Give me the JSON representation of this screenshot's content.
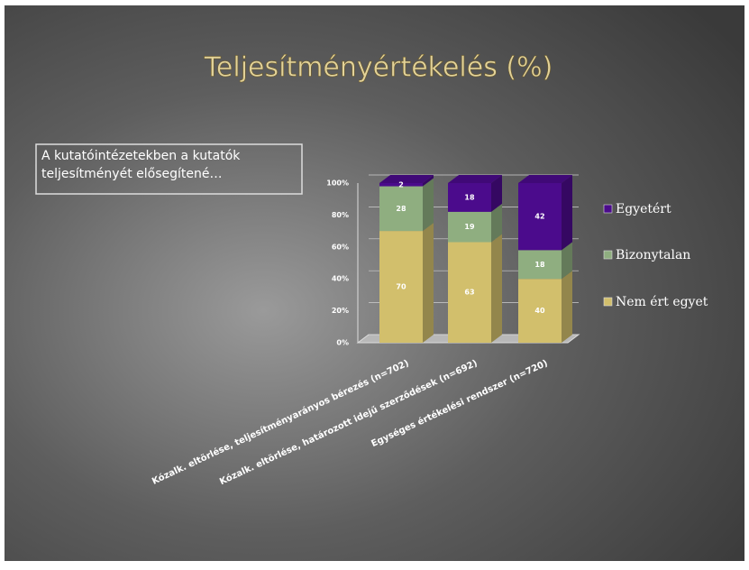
{
  "chart_data": {
    "type": "stacked_bar_3d",
    "title": "Teljesítményértékelés (%)",
    "annotation": "A kutatóintézetekben a kutatók teljesítményét elősegítené…",
    "categories": [
      "Kózalk. eltörlése, teljesítményarányos bérezés (n=702)",
      "Kózalk. eltörlése, határozott idejű szerződések (n=692)",
      "Egységes értékelési rendszer (n=720)"
    ],
    "series": [
      {
        "name": "Nem ért egyet",
        "color": "#d2bf6c",
        "values": [
          70,
          63,
          40
        ]
      },
      {
        "name": "Bizonytalan",
        "color": "#8fae80",
        "values": [
          28,
          19,
          18
        ]
      },
      {
        "name": "Egyetért",
        "color": "#4b0b8c",
        "values": [
          2,
          18,
          42
        ]
      }
    ],
    "ylim": [
      0,
      100
    ],
    "yticks": [
      {
        "value": 0,
        "label": "0%"
      },
      {
        "value": 20,
        "label": "20%"
      },
      {
        "value": 40,
        "label": "40%"
      },
      {
        "value": 60,
        "label": "60%"
      },
      {
        "value": 80,
        "label": "80%"
      },
      {
        "value": 100,
        "label": "100%"
      }
    ],
    "grid": true,
    "legend": "right"
  }
}
